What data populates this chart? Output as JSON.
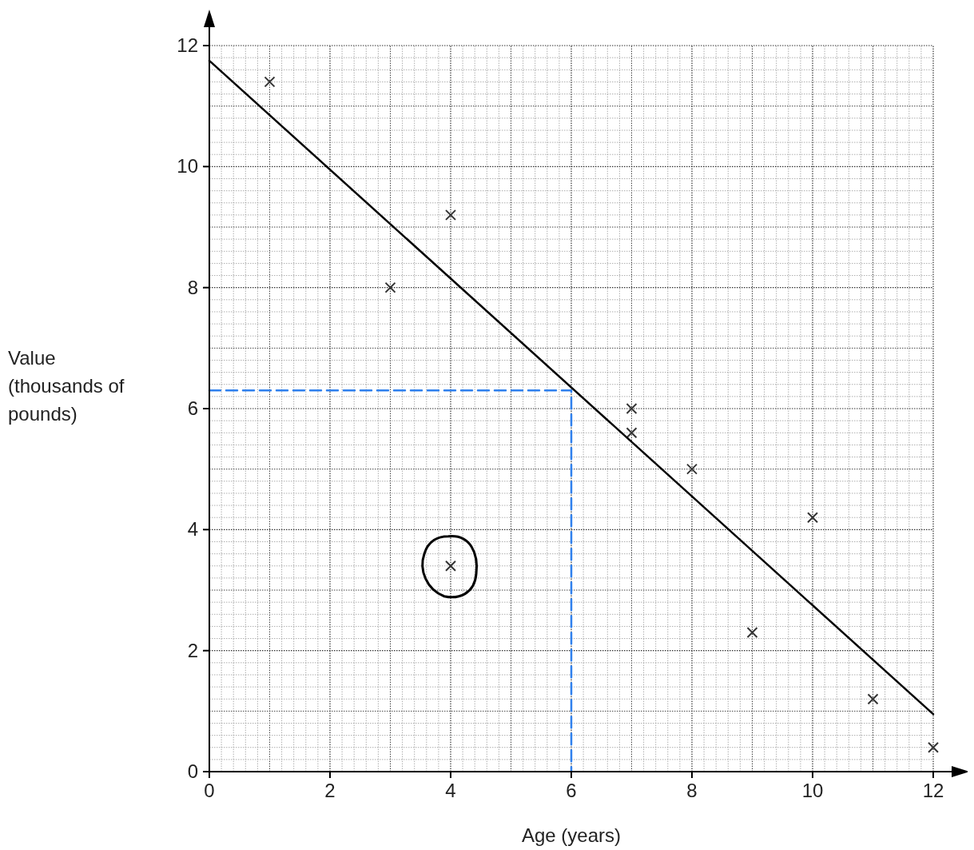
{
  "chart_data": {
    "type": "scatter",
    "xlabel": "Age (years)",
    "ylabel": "Value (thousands of pounds)",
    "xlim": [
      0,
      12
    ],
    "ylim": [
      0,
      12
    ],
    "xticks": [
      0,
      2,
      4,
      6,
      8,
      10,
      12
    ],
    "yticks": [
      0,
      2,
      4,
      6,
      8,
      10,
      12
    ],
    "grid": true,
    "series": [
      {
        "marker": "cross",
        "color": "#333333",
        "x": [
          1,
          3,
          4,
          4,
          7,
          7,
          8,
          9,
          10,
          11,
          12
        ],
        "values": [
          11.4,
          8.0,
          9.2,
          3.4,
          6.0,
          5.6,
          5.0,
          2.3,
          4.2,
          1.2,
          0.4
        ]
      },
      {
        "type": "line",
        "marker": "none",
        "color": "#000000",
        "line_style": "solid",
        "x": [
          0,
          12
        ],
        "values": [
          11.75,
          0.95
        ]
      },
      {
        "type": "line",
        "marker": "none",
        "color": "#2f80ed",
        "line_style": "dashed",
        "x": [
          0,
          6,
          6
        ],
        "values": [
          6.3,
          6.3,
          0
        ]
      }
    ]
  }
}
